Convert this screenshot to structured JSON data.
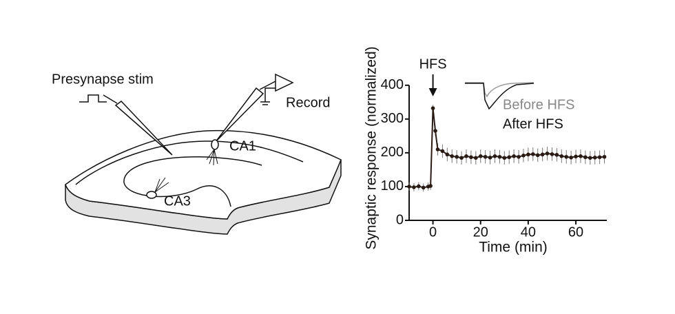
{
  "diagram": {
    "labels": [
      "Presynapse stim",
      "Record",
      "CA1",
      "CA3"
    ]
  },
  "chart_data": {
    "type": "line",
    "x_label": "Time (min)",
    "y_label": "Synaptic response  (normalized)",
    "annotations": [
      "HFS",
      "Before HFS",
      "After HFS"
    ],
    "x": [
      -10,
      -8,
      -6,
      -4,
      -2,
      -1,
      0,
      1,
      2,
      4,
      6,
      8,
      10,
      12,
      14,
      16,
      18,
      20,
      22,
      24,
      26,
      28,
      30,
      32,
      34,
      36,
      38,
      40,
      42,
      44,
      46,
      48,
      50,
      52,
      54,
      56,
      58,
      60,
      62,
      64,
      66,
      68,
      70,
      72
    ],
    "series": [
      {
        "color": "#2a1a14",
        "values": [
          100,
          98,
          101,
          97,
          100,
          102,
          332,
          265,
          210,
          205,
          195,
          190,
          188,
          185,
          190,
          187,
          185,
          190,
          188,
          186,
          190,
          188,
          185,
          187,
          190,
          188,
          192,
          195,
          196,
          193,
          195,
          198,
          196,
          194,
          190,
          188,
          186,
          189,
          190,
          187,
          185,
          186,
          187,
          188
        ],
        "errors": [
          12,
          12,
          12,
          12,
          12,
          12,
          10,
          15,
          18,
          20,
          20,
          20,
          20,
          20,
          20,
          20,
          20,
          20,
          20,
          20,
          20,
          20,
          20,
          20,
          20,
          20,
          20,
          20,
          20,
          20,
          20,
          20,
          20,
          20,
          20,
          20,
          20,
          20,
          20,
          20,
          20,
          20,
          20,
          20
        ]
      }
    ],
    "xlim": [
      -10,
      73
    ],
    "ylim": [
      0,
      420
    ],
    "xticks": [
      0,
      20,
      40,
      60
    ],
    "yticks": [
      0,
      100,
      200,
      300,
      400
    ]
  }
}
